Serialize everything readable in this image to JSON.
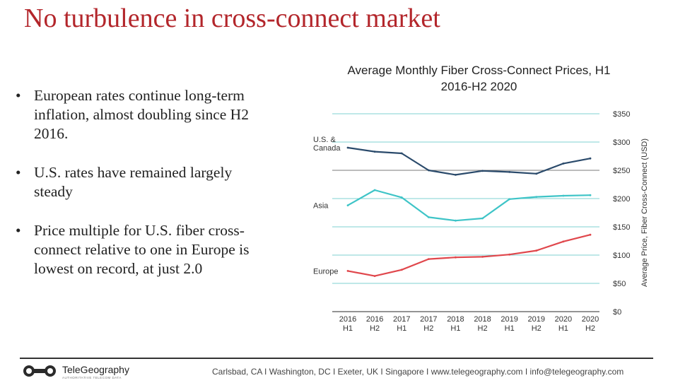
{
  "slide": {
    "title": "No turbulence in cross-connect market",
    "bullets": [
      "European rates continue long-term inflation, almost doubling since H2 2016.",
      "U.S. rates have remained largely steady",
      "Price multiple for U.S. fiber cross-connect relative to one in Europe is lowest on record, at just 2.0"
    ],
    "bullet_symbol": "•"
  },
  "footer": {
    "brand": "TeleGeography",
    "tagline": "AUTHORITATIVE TELECOM DATA",
    "contact": "Carlsbad, CA I Washington, DC I Exeter, UK I Singapore I www.telegeography.com I info@telegeography.com"
  },
  "chart_data": {
    "type": "line",
    "title": "Average Monthly Fiber Cross-Connect Prices, H1 2016-H2 2020",
    "ylabel": "Average Price, Fiber Cross-Connect (USD)",
    "xlabel": "",
    "categories": [
      [
        "2016",
        "H1"
      ],
      [
        "2016",
        "H2"
      ],
      [
        "2017",
        "H1"
      ],
      [
        "2017",
        "H2"
      ],
      [
        "2018",
        "H1"
      ],
      [
        "2018",
        "H2"
      ],
      [
        "2019",
        "H1"
      ],
      [
        "2019",
        "H2"
      ],
      [
        "2020",
        "H1"
      ],
      [
        "2020",
        "H2"
      ]
    ],
    "yticks": [
      "$0",
      "$50",
      "$100",
      "$150",
      "$200",
      "$250",
      "$300",
      "$350"
    ],
    "ylim": [
      0,
      350
    ],
    "grid": true,
    "series": [
      {
        "name": "U.S. & Canada",
        "color": "#2a4a6b",
        "values": [
          290,
          283,
          280,
          250,
          242,
          249,
          247,
          244,
          262,
          271
        ]
      },
      {
        "name": "Asia",
        "color": "#3ec4c7",
        "values": [
          188,
          215,
          202,
          167,
          161,
          165,
          199,
          203,
          205,
          206
        ]
      },
      {
        "name": "Europe",
        "color": "#e0474c",
        "values": [
          72,
          63,
          74,
          93,
          96,
          97,
          101,
          108,
          124,
          136
        ]
      }
    ]
  }
}
